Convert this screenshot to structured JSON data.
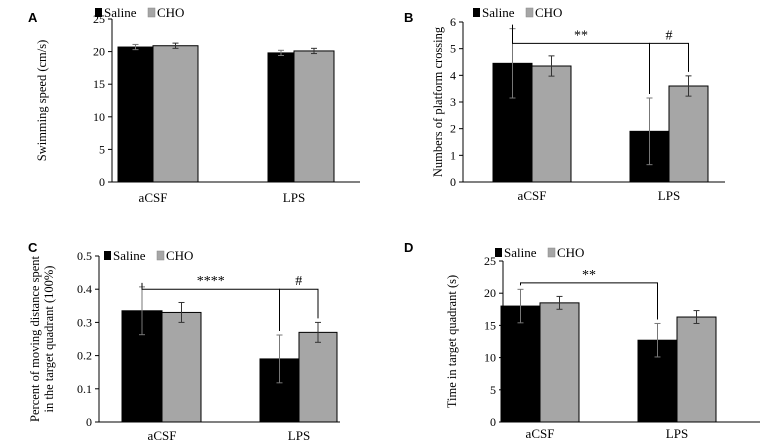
{
  "colors": {
    "saline": "#000000",
    "cho": "#a6a6a6",
    "axis": "#000000"
  },
  "legend": {
    "saline": "Saline",
    "cho": "CHO"
  },
  "chart_data": [
    {
      "id": "A",
      "type": "bar",
      "ylabel": [
        "Swimming speed (cm/s)"
      ],
      "categories": [
        "aCSF",
        "LPS"
      ],
      "ylim": [
        0,
        25
      ],
      "yticks": [
        0,
        5,
        10,
        15,
        20,
        25
      ],
      "series": [
        {
          "name": "Saline",
          "values": [
            20.7,
            19.8
          ],
          "errors": [
            0.4,
            0.4
          ]
        },
        {
          "name": "CHO",
          "values": [
            20.9,
            20.1
          ],
          "errors": [
            0.4,
            0.4
          ]
        }
      ],
      "annotations": []
    },
    {
      "id": "B",
      "type": "bar",
      "ylabel": [
        "Numbers of platform crossing"
      ],
      "categories": [
        "aCSF",
        "LPS"
      ],
      "ylim": [
        0,
        6
      ],
      "yticks": [
        0,
        1,
        2,
        3,
        4,
        5,
        6
      ],
      "series": [
        {
          "name": "Saline",
          "values": [
            4.45,
            1.9
          ],
          "errors": [
            1.3,
            1.25
          ]
        },
        {
          "name": "CHO",
          "values": [
            4.35,
            3.6
          ],
          "errors": [
            0.38,
            0.38
          ]
        }
      ],
      "annotations": [
        {
          "text": "**",
          "from": [
            0,
            0
          ],
          "to": [
            1,
            0
          ],
          "y": 5.2,
          "labelAt": "middle"
        },
        {
          "text": "#",
          "from": [
            1,
            0
          ],
          "to": [
            1,
            1
          ],
          "y": 5.2,
          "labelAt": "middle"
        }
      ]
    },
    {
      "id": "C",
      "type": "bar",
      "ylabel": [
        "Percent of moving distance spent",
        "in the target quadrant (100%)"
      ],
      "categories": [
        "aCSF",
        "LPS"
      ],
      "ylim": [
        0,
        0.5
      ],
      "yticks": [
        0,
        0.1,
        0.2,
        0.3,
        0.4,
        0.5
      ],
      "ytick_labels": [
        "0",
        "0.1",
        "0.2",
        "0.3",
        "0.4",
        "0.5"
      ],
      "series": [
        {
          "name": "Saline",
          "values": [
            0.335,
            0.19
          ],
          "errors": [
            0.072,
            0.072
          ]
        },
        {
          "name": "CHO",
          "values": [
            0.33,
            0.27
          ],
          "errors": [
            0.03,
            0.03
          ]
        }
      ],
      "annotations": [
        {
          "text": "****",
          "from": [
            0,
            0
          ],
          "to": [
            1,
            0
          ],
          "y": 0.4,
          "labelAt": "middle"
        },
        {
          "text": "#",
          "from": [
            1,
            0
          ],
          "to": [
            1,
            1
          ],
          "y": 0.4,
          "labelAt": "middle"
        }
      ]
    },
    {
      "id": "D",
      "type": "bar",
      "ylabel": [
        "Time in target quadrant (s)"
      ],
      "categories": [
        "aCSF",
        "LPS"
      ],
      "ylim": [
        0,
        25
      ],
      "yticks": [
        0,
        5,
        10,
        15,
        20,
        25
      ],
      "series": [
        {
          "name": "Saline",
          "values": [
            18.0,
            12.7
          ],
          "errors": [
            2.6,
            2.6
          ]
        },
        {
          "name": "CHO",
          "values": [
            18.5,
            16.3
          ],
          "errors": [
            1.0,
            1.0
          ]
        }
      ],
      "annotations": [
        {
          "text": "**",
          "from": [
            0,
            0
          ],
          "to": [
            1,
            0
          ],
          "y": 21.6,
          "labelAt": "middle"
        }
      ]
    }
  ]
}
